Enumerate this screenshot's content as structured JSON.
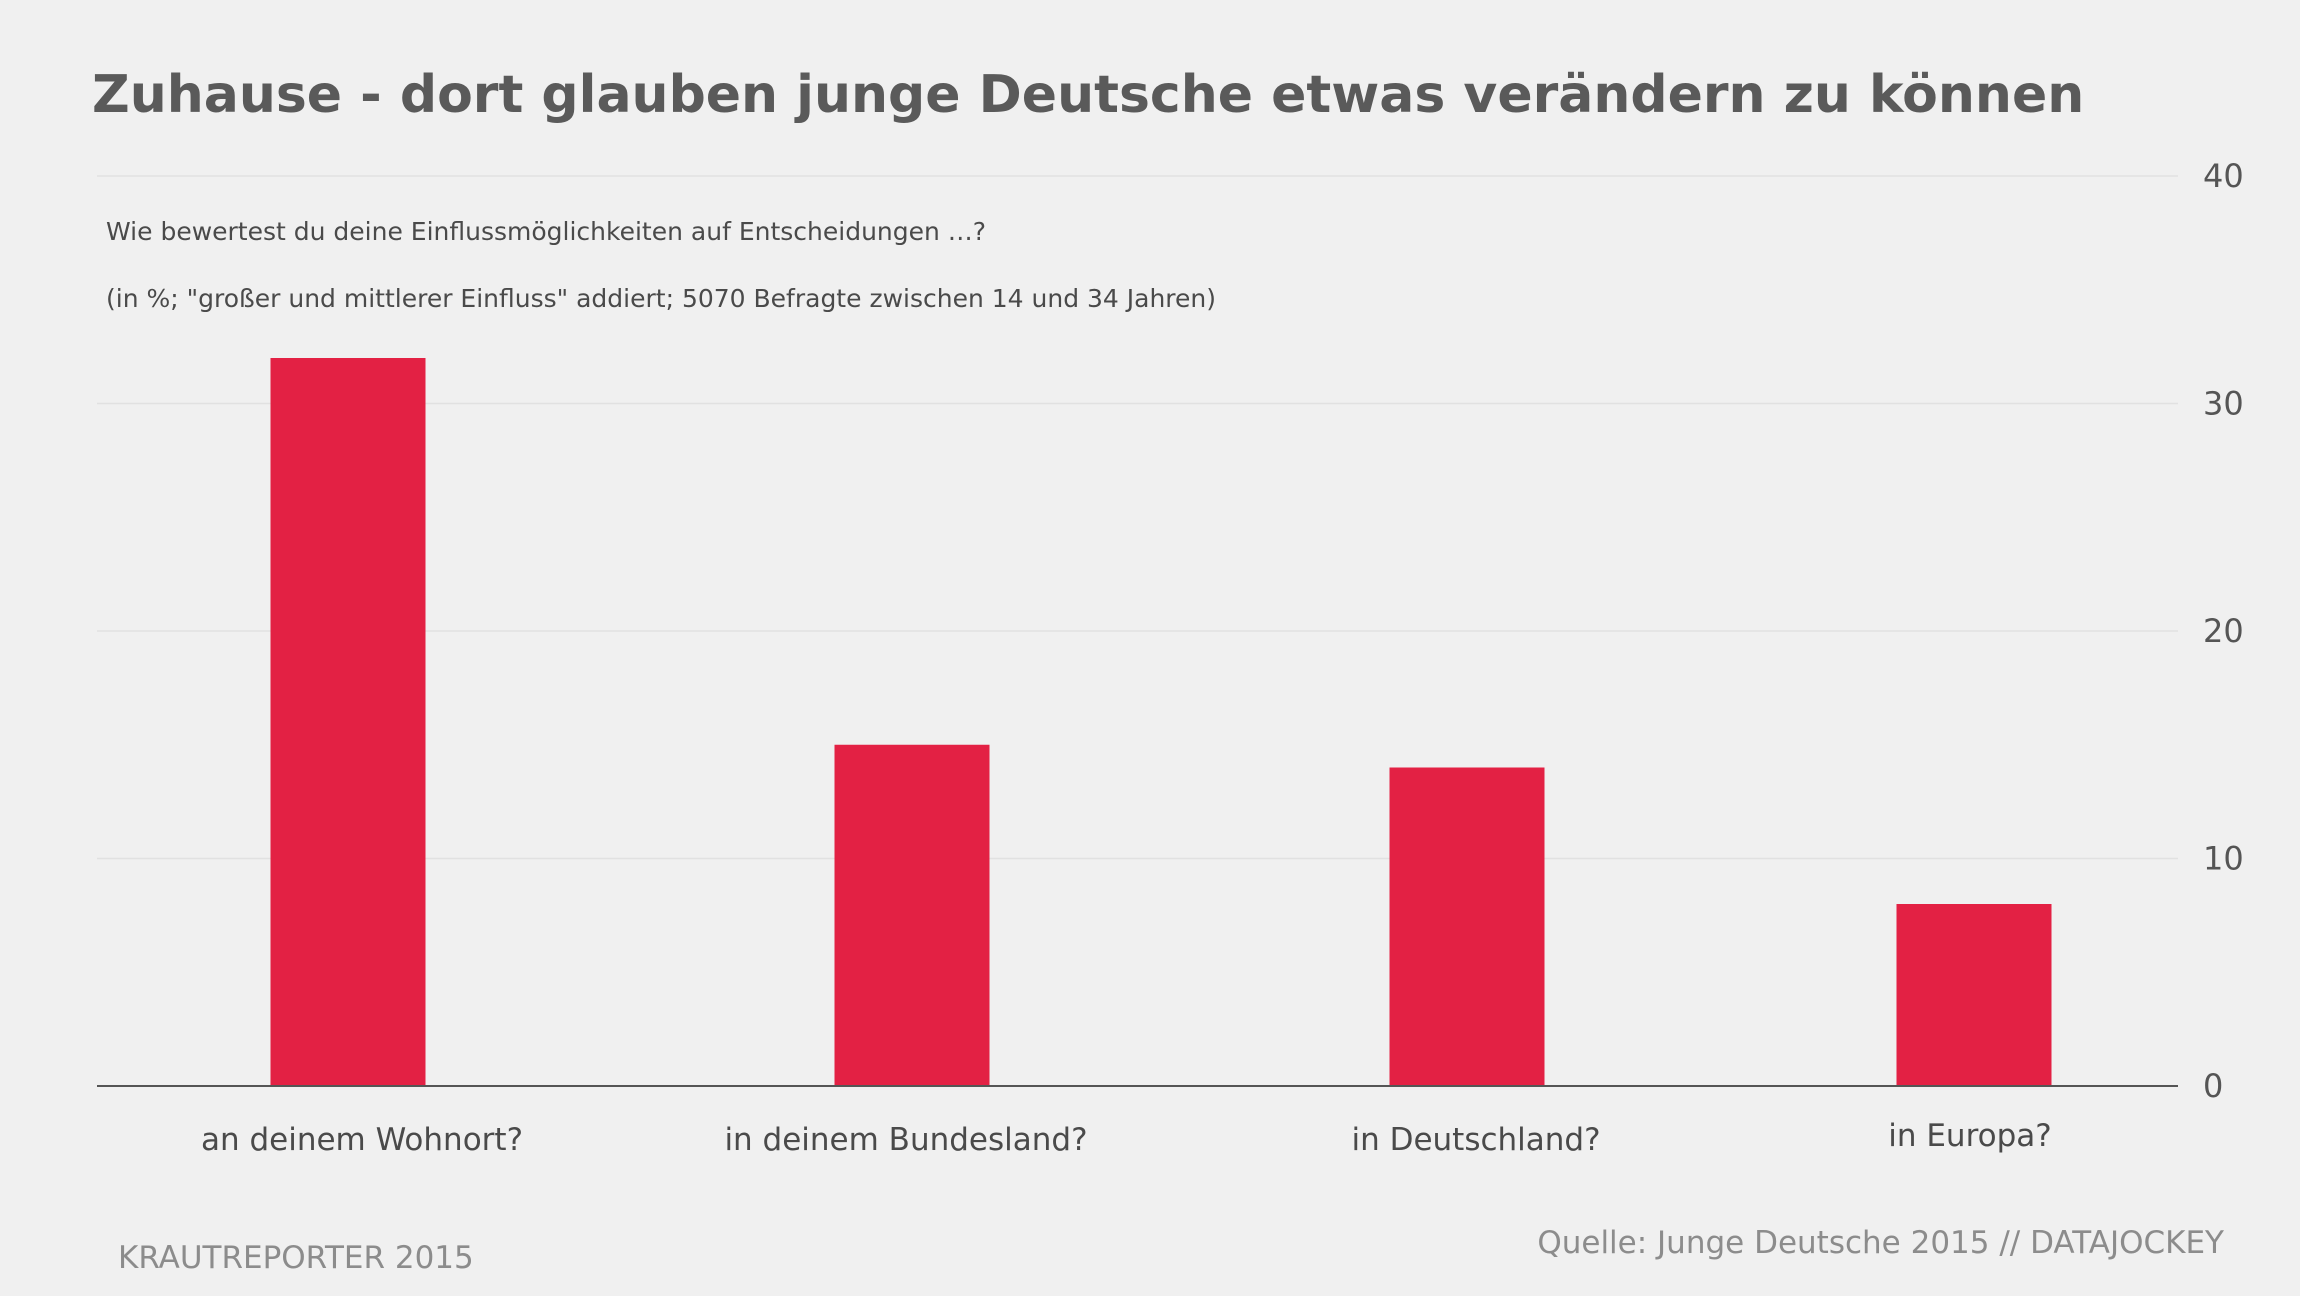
{
  "title": "Zuhause - dort glauben junge Deutsche etwas verändern zu können",
  "notes": [
    "Wie bewertest du deine Einflussmöglichkeiten auf Entscheidungen …?",
    "(in %; \"großer und mittlerer Einfluss\" addiert; 5070 Befragte zwischen 14 und 34 Jahren)"
  ],
  "footer": {
    "left": "KRAUTREPORTER 2015",
    "right": "Quelle: Junge Deutsche 2015 // DATAJOCKEY"
  },
  "colors": {
    "bar": "#e32144",
    "background": "#f0f0f0"
  },
  "chart_data": {
    "type": "bar",
    "title": "Zuhause - dort glauben junge Deutsche etwas verändern zu können",
    "categories": [
      "an deinem Wohnort?",
      "in deinem Bundesland?",
      "in Deutschland?",
      "in Europa?"
    ],
    "values": [
      32,
      15,
      14,
      8
    ],
    "ylim": [
      0,
      40
    ],
    "yticks": [
      0,
      10,
      20,
      30,
      40
    ],
    "y_axis_side": "right",
    "grid": true,
    "xlabel": "",
    "ylabel": ""
  }
}
